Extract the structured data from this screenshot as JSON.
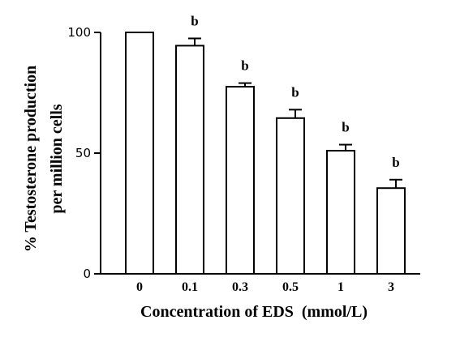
{
  "chart_data": {
    "type": "bar",
    "categories": [
      "0",
      "0.1",
      "0.3",
      "0.5",
      "1",
      "3"
    ],
    "values": [
      100,
      94.5,
      77.5,
      64.5,
      51,
      35.5
    ],
    "errors": [
      0,
      3,
      1.5,
      3.5,
      2.5,
      3.5
    ],
    "annotations": [
      "",
      "b",
      "b",
      "b",
      "b",
      "b"
    ],
    "xlabel": "Concentration of EDS  (mmol/L)",
    "ylabel_lines": [
      "% Testosterone production",
      "per million cells"
    ],
    "yticks": [
      0,
      50,
      100
    ],
    "ylim": [
      0,
      100
    ],
    "bar_fill": "#ffffff",
    "bar_stroke": "#000000"
  }
}
